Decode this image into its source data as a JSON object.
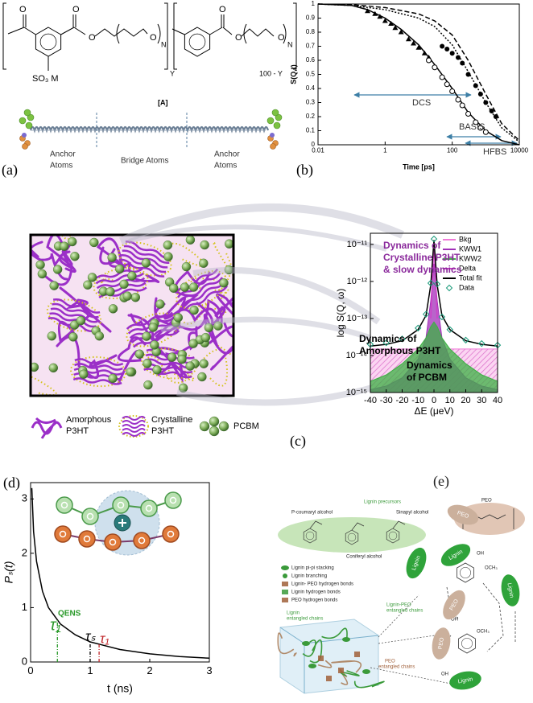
{
  "panel_a": {
    "label": "(a)",
    "formula_atoms": [
      "O",
      "O",
      "O",
      "O",
      "N",
      "Y",
      "O",
      "O",
      "O",
      "N",
      "100 - Y",
      "SO₃ M"
    ],
    "compound": "[A]",
    "chain_labels": [
      [
        "Anchor",
        "Atoms"
      ],
      [
        "Bridge Atoms"
      ],
      [
        "Anchor",
        "Atoms"
      ]
    ]
  },
  "panel_b": {
    "label": "(b)"
  },
  "panel_c": {
    "label": "(c)",
    "legend": [
      {
        "lines": [
          "Amorphous",
          "P3HT"
        ]
      },
      {
        "lines": [
          "Crystalline",
          "P3HT"
        ]
      },
      {
        "lines": [
          "PCBM"
        ]
      }
    ]
  },
  "panel_d": {
    "label": "(d)"
  },
  "panel_e": {
    "label": "(e)",
    "precursors_title": "Lignin precursors",
    "precursors": [
      "P-coumaryl alcohol",
      "Sinapyl alcohol",
      "Coniferyl alcohol"
    ],
    "peo": "PEO",
    "legend": [
      "Lignin pi-pi stacking",
      "Lignin branching",
      "Lignin- PEO hydrogen bonds",
      "Lignin hydrogen bonds",
      "PEO hydrogen bonds"
    ],
    "box_labels": [
      [
        "Lignin",
        "entangled chains"
      ],
      [
        "Lignin-PEO",
        "entangled chains"
      ],
      [
        "PEO",
        "entangled chains"
      ]
    ],
    "blobs": [
      "Lignin",
      "Lignin",
      "Lignin",
      "Lignin",
      "PEO",
      "PEO",
      "PEO"
    ],
    "groups": [
      "OH",
      "OCH₃",
      "OCH₃",
      "OH",
      "OH"
    ]
  },
  "chart_data": [
    {
      "type": "line",
      "log_x": true,
      "xlim": [
        0.01,
        10000
      ],
      "xticks": [
        0.01,
        1,
        100,
        10000
      ],
      "ylim": [
        0,
        1
      ],
      "yticks": [
        0,
        0.1,
        0.2,
        0.3,
        0.4,
        0.5,
        0.6,
        0.7,
        0.8,
        0.9,
        1
      ],
      "x_label": "Time [ps]",
      "y_label": "S(Q,t)",
      "annotations": [
        {
          "lines": [
            "DCS"
          ],
          "color": "#333333"
        },
        {
          "lines": [
            "BASIS"
          ],
          "color": "#333333"
        },
        {
          "lines": [
            "HFBS"
          ],
          "color": "#333333"
        }
      ],
      "series": [
        {
          "mode": "line",
          "color": "#000000",
          "dash": "none",
          "x": [
            0.01,
            0.1,
            0.3,
            1,
            3,
            10,
            30,
            100,
            300,
            1000,
            3000,
            10000
          ],
          "values": [
            1,
            0.99,
            0.96,
            0.9,
            0.82,
            0.71,
            0.57,
            0.4,
            0.23,
            0.1,
            0.03,
            0
          ]
        },
        {
          "mode": "line",
          "color": "#000000",
          "dash": "6 3",
          "x": [
            0.01,
            0.1,
            1,
            10,
            30,
            100,
            300,
            1000,
            3000,
            10000
          ],
          "values": [
            1,
            0.995,
            0.975,
            0.93,
            0.88,
            0.78,
            0.6,
            0.36,
            0.15,
            0.03
          ]
        },
        {
          "mode": "line",
          "color": "#000000",
          "dash": "2 2",
          "x": [
            0.01,
            0.1,
            1,
            10,
            30,
            100,
            300,
            1000,
            3000,
            10000
          ],
          "values": [
            1,
            0.99,
            0.96,
            0.9,
            0.84,
            0.71,
            0.52,
            0.3,
            0.12,
            0.02
          ]
        },
        {
          "mode": "scatter",
          "marker": "triangle",
          "color": "#000000",
          "x": [
            0.3,
            0.5,
            0.7,
            1,
            1.5,
            2,
            3,
            5,
            7,
            10,
            15,
            20
          ],
          "values": [
            0.95,
            0.93,
            0.91,
            0.88,
            0.86,
            0.83,
            0.8,
            0.75,
            0.72,
            0.69,
            0.65,
            0.62
          ]
        },
        {
          "mode": "scatter",
          "marker": "open-circle",
          "color": "#000000",
          "x": [
            20,
            30,
            50,
            70,
            100,
            150,
            200,
            300,
            500,
            700,
            1000
          ],
          "values": [
            0.6,
            0.55,
            0.48,
            0.43,
            0.38,
            0.32,
            0.28,
            0.22,
            0.16,
            0.12,
            0.09
          ]
        },
        {
          "mode": "scatter",
          "marker": "circle",
          "color": "#000000",
          "x": [
            50,
            70,
            100,
            150,
            200,
            300,
            500,
            700,
            1000,
            1500,
            2000
          ],
          "values": [
            0.7,
            0.68,
            0.65,
            0.62,
            0.58,
            0.5,
            0.42,
            0.36,
            0.3,
            0.24,
            0.2
          ]
        }
      ]
    },
    {
      "type": "line",
      "log_y": true,
      "xlim": [
        -40,
        40
      ],
      "xticks": [
        -40,
        -30,
        -20,
        -10,
        0,
        10,
        20,
        30,
        40
      ],
      "ylim": [
        1e-15,
        2e-11
      ],
      "yticks": [
        {
          "value": 1e-15,
          "label": "10⁻¹⁵"
        },
        {
          "value": 1e-14,
          "label": "10⁻¹⁴"
        },
        {
          "value": 1e-13,
          "label": "10⁻¹³"
        },
        {
          "value": 1e-12,
          "label": "10⁻¹²"
        },
        {
          "value": 1e-11,
          "label": "10⁻¹¹"
        }
      ],
      "x_label": "ΔE (μeV)",
      "y_label": "log S(Q, ω)",
      "legend": "upper right",
      "x": [
        -40,
        -30,
        -20,
        -10,
        -5,
        -2,
        0,
        2,
        5,
        10,
        20,
        30,
        40
      ],
      "series": [
        {
          "name": "Bkg",
          "mode": "area",
          "color": "#f07ad8",
          "values": [
            1.5e-14,
            1.5e-14,
            1.5e-14,
            1.5e-14,
            1.5e-14,
            1.5e-14,
            1.5e-14,
            1.5e-14,
            1.5e-14,
            1.5e-14,
            1.5e-14,
            1.5e-14,
            1.5e-14
          ]
        },
        {
          "name": "KWW1",
          "mode": "area",
          "color": "#a030b8",
          "values": [
            1.2e-15,
            1.5e-15,
            2.5e-15,
            8e-15,
            3e-14,
            3e-13,
            3e-12,
            3e-13,
            3e-14,
            8e-15,
            2.5e-15,
            1.5e-15,
            1.2e-15
          ]
        },
        {
          "name": "KWW2",
          "mode": "area",
          "color": "#3cb043",
          "values": [
            2e-15,
            3e-15,
            6e-15,
            1.5e-14,
            3e-14,
            6e-14,
            8e-14,
            6e-14,
            3e-14,
            1.5e-14,
            6e-15,
            3e-15,
            2e-15
          ]
        },
        {
          "name": "Delta",
          "mode": "line",
          "color": "#d040c8",
          "values": [
            null,
            null,
            null,
            null,
            null,
            1e-13,
            1.1e-11,
            1e-13,
            null,
            null,
            null,
            null,
            null
          ]
        },
        {
          "name": "Total fit",
          "mode": "line",
          "color": "#000000",
          "values": [
            1.8e-14,
            2e-14,
            2.5e-14,
            5e-14,
            1.2e-13,
            8e-13,
            1.3e-11,
            8e-13,
            1.2e-13,
            5e-14,
            2.5e-14,
            2e-14,
            1.8e-14
          ]
        },
        {
          "name": "Data",
          "mode": "scatter",
          "marker": "open-diamond",
          "color": "#1a9a7a",
          "values": [
            2e-14,
            2.2e-14,
            2.8e-14,
            5.5e-14,
            1.3e-13,
            9e-13,
            1.4e-11,
            8.5e-13,
            1.1e-13,
            5e-14,
            2.6e-14,
            2.1e-14,
            1.9e-14
          ]
        }
      ],
      "annotations": [
        {
          "lines": [
            "Dynamics of",
            "Crystalline P3HT",
            "& slow dynamics"
          ],
          "color": "#8b2a9c"
        },
        {
          "lines": [
            "Dynamics of",
            "Amorphous P3HT"
          ],
          "color": "#000000"
        },
        {
          "lines": [
            "Dynamics",
            "of PCBM"
          ],
          "color": "#000000"
        }
      ]
    },
    {
      "type": "line",
      "xlim": [
        0,
        3
      ],
      "xticks": [
        0,
        1,
        2,
        3
      ],
      "ylim": [
        0,
        3.3
      ],
      "yticks": [
        0,
        1,
        2,
        3
      ],
      "x_label": "t (ns)",
      "y_label": "Pₛ(t)",
      "series": [
        {
          "mode": "line",
          "color": "#000000",
          "dash": "none",
          "x": [
            0.02,
            0.05,
            0.1,
            0.2,
            0.3,
            0.5,
            0.75,
            1,
            1.5,
            2,
            2.5,
            3
          ],
          "values": [
            3.2,
            2.4,
            1.85,
            1.3,
            1,
            0.7,
            0.5,
            0.37,
            0.23,
            0.15,
            0.1,
            0.07
          ]
        }
      ],
      "vlines": [
        {
          "x": 0.45,
          "color": "#2a9a2a"
        },
        {
          "x": 1,
          "color": "#000000"
        },
        {
          "x": 1.15,
          "color": "#c0282c"
        }
      ],
      "annotations": [
        {
          "lines": [
            "τ₁"
          ],
          "color": "#2a9a2a"
        },
        {
          "lines": [
            "QENS"
          ],
          "color": "#2a9a2a"
        },
        {
          "lines": [
            "τₛ"
          ],
          "color": "#000000"
        },
        {
          "lines": [
            "τ₁"
          ],
          "color": "#c0282c"
        }
      ]
    }
  ]
}
